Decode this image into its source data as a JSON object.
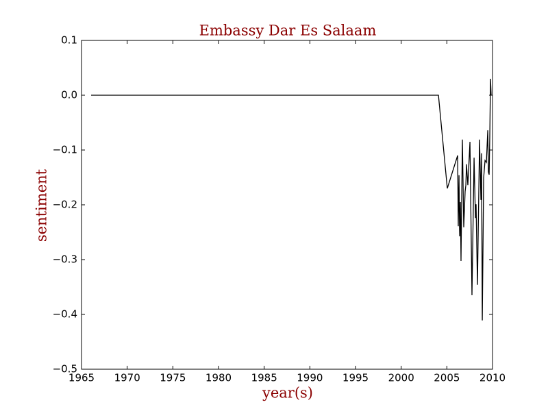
{
  "chart_data": {
    "type": "line",
    "title": "Embassy Dar Es Salaam",
    "x_label": "year(s)",
    "y_label": "sentiment",
    "x": [
      1966.05,
      2004.08,
      2005.05,
      2006.18,
      2006.25,
      2006.33,
      2006.4,
      2006.48,
      2006.55,
      2006.7,
      2006.85,
      2007.0,
      2007.08,
      2007.15,
      2007.3,
      2007.53,
      2007.75,
      2007.98,
      2008.13,
      2008.2,
      2008.35,
      2008.58,
      2008.73,
      2008.8,
      2008.88,
      2009.03,
      2009.18,
      2009.33,
      2009.48,
      2009.55,
      2009.63,
      2009.7,
      2009.78,
      2009.85
    ],
    "series": [
      {
        "name": "sentiment",
        "color": "#000000",
        "values": [
          0,
          0,
          -0.17,
          -0.11,
          -0.239,
          -0.146,
          -0.2575,
          -0.195,
          -0.3025,
          -0.081,
          -0.241,
          -0.176,
          -0.164,
          -0.126,
          -0.164,
          -0.085,
          -0.365,
          -0.114,
          -0.224,
          -0.199,
          -0.346,
          -0.081,
          -0.191,
          -0.106,
          -0.411,
          -0.151,
          -0.119,
          -0.1225,
          -0.064,
          -0.14,
          -0.145,
          -0.076,
          0.03,
          0
        ]
      }
    ],
    "xlim": [
      1965,
      2010
    ],
    "xticks": [
      1965,
      1970,
      1975,
      1980,
      1985,
      1990,
      1995,
      2000,
      2005,
      2010
    ],
    "ylim": [
      -0.5,
      0.1
    ],
    "yticks": [
      {
        "value": -0.5,
        "label": "−0.5"
      },
      {
        "value": -0.4,
        "label": "−0.4"
      },
      {
        "value": -0.3,
        "label": "−0.3"
      },
      {
        "value": -0.2,
        "label": "−0.2"
      },
      {
        "value": -0.1,
        "label": "−0.1"
      },
      {
        "value": 0,
        "label": "0.0"
      },
      0.1
    ],
    "grid": false
  }
}
